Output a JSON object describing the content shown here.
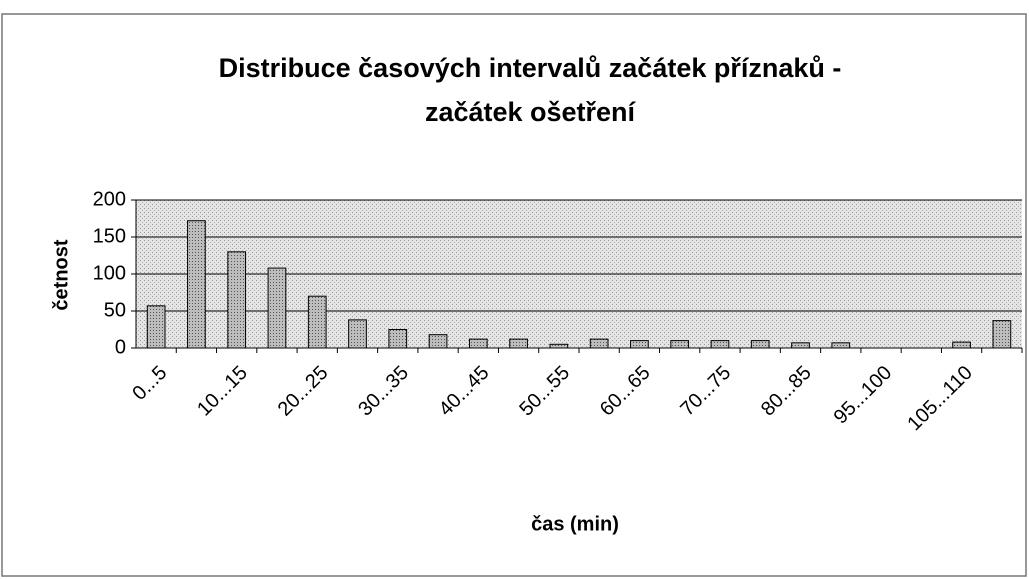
{
  "chart_data": {
    "type": "bar",
    "title": [
      "Distribuce časových intervalů začátek příznaků -",
      "začátek ošetření"
    ],
    "x_label": "čas (min)",
    "y_label": "četnost",
    "categories": [
      "0...5",
      null,
      "10...15",
      null,
      "20...25",
      null,
      "30...35",
      null,
      "40...45",
      null,
      "50...55",
      null,
      "60...65",
      null,
      "70...75",
      null,
      "80...85",
      null,
      "95...100",
      null,
      "105...110",
      null
    ],
    "values": [
      57,
      172,
      130,
      108,
      70,
      38,
      25,
      18,
      12,
      12,
      5,
      12,
      10,
      10,
      10,
      10,
      7,
      7,
      0,
      0,
      8,
      37
    ],
    "color": "#a8a8a8",
    "ylim": [
      0,
      200
    ],
    "yticks": [
      0,
      50,
      100,
      150,
      200
    ],
    "grid": true
  }
}
